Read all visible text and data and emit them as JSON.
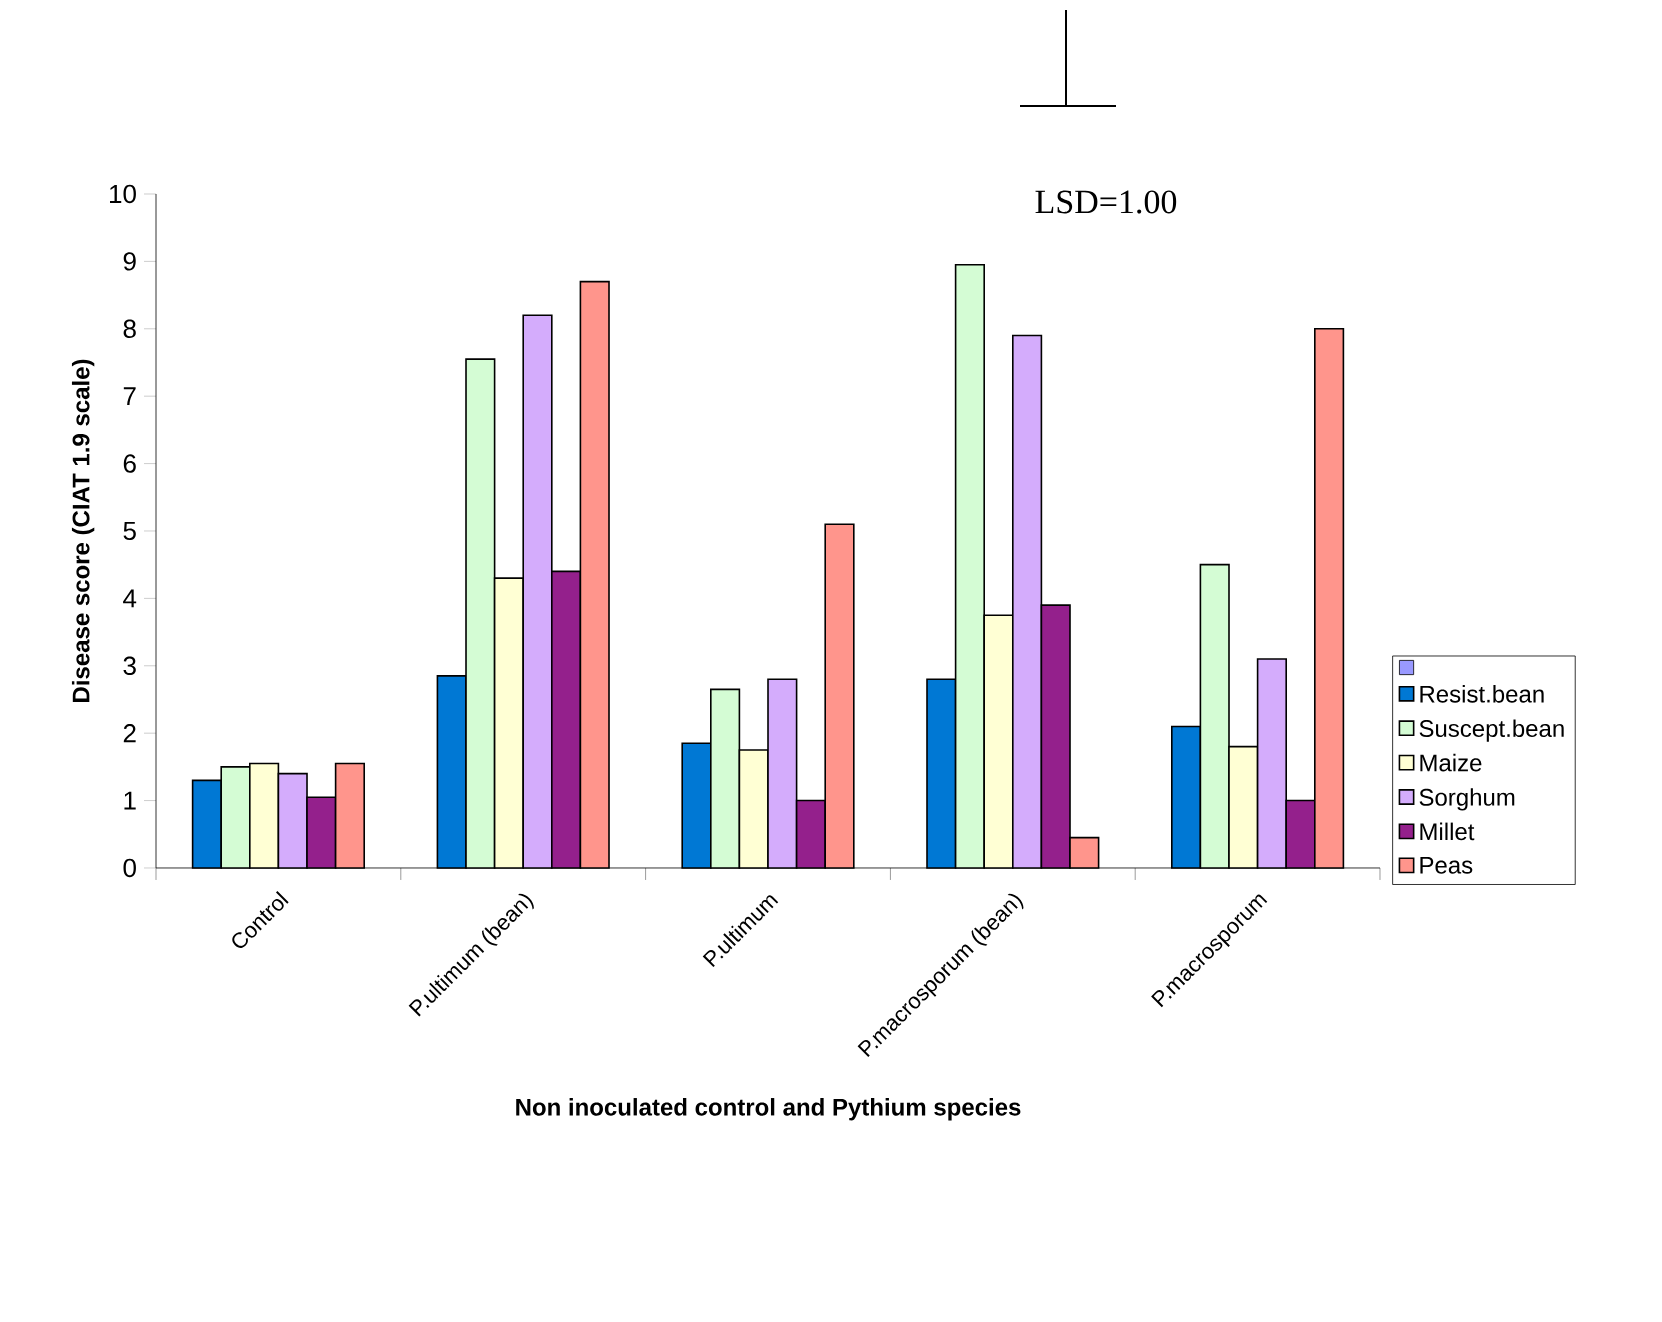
{
  "chart_data": {
    "type": "bar",
    "xlabel": "Non inoculated control and Pythium species",
    "ylabel": "Disease score (CIAT 1.9 scale)",
    "categories": [
      "Control",
      "P.ultimum (bean)",
      "P.ultimum",
      "P.macrosporum (bean)",
      "P.macrosporum"
    ],
    "series": [
      {
        "color": "#9999ff",
        "values": [
          null,
          null,
          null,
          null,
          null
        ]
      },
      {
        "name": "Resist.bean",
        "color": "#0078d4",
        "values": [
          1.3,
          2.85,
          1.85,
          2.8,
          2.1
        ]
      },
      {
        "name": "Suscept.bean",
        "color": "#d4fcd4",
        "values": [
          1.5,
          7.55,
          2.65,
          8.95,
          4.5
        ]
      },
      {
        "name": "Maize",
        "color": "#ffffd4",
        "values": [
          1.55,
          4.3,
          1.75,
          3.75,
          1.8
        ]
      },
      {
        "name": "Sorghum",
        "color": "#d4acfc",
        "values": [
          1.4,
          8.2,
          2.8,
          7.9,
          3.1
        ]
      },
      {
        "name": "Millet",
        "color": "#94208c",
        "values": [
          1.05,
          4.4,
          1.0,
          3.9,
          1.0
        ]
      },
      {
        "name": "Peas",
        "color": "#ff958c",
        "values": [
          1.55,
          8.7,
          5.1,
          0.45,
          8.0
        ]
      }
    ],
    "ylim": [
      0,
      10
    ],
    "yticks": [
      0,
      1,
      2,
      3,
      4,
      5,
      6,
      7,
      8,
      9,
      10
    ],
    "grid": false,
    "legend": "right",
    "annotations": [
      "LSD=1.00"
    ]
  }
}
